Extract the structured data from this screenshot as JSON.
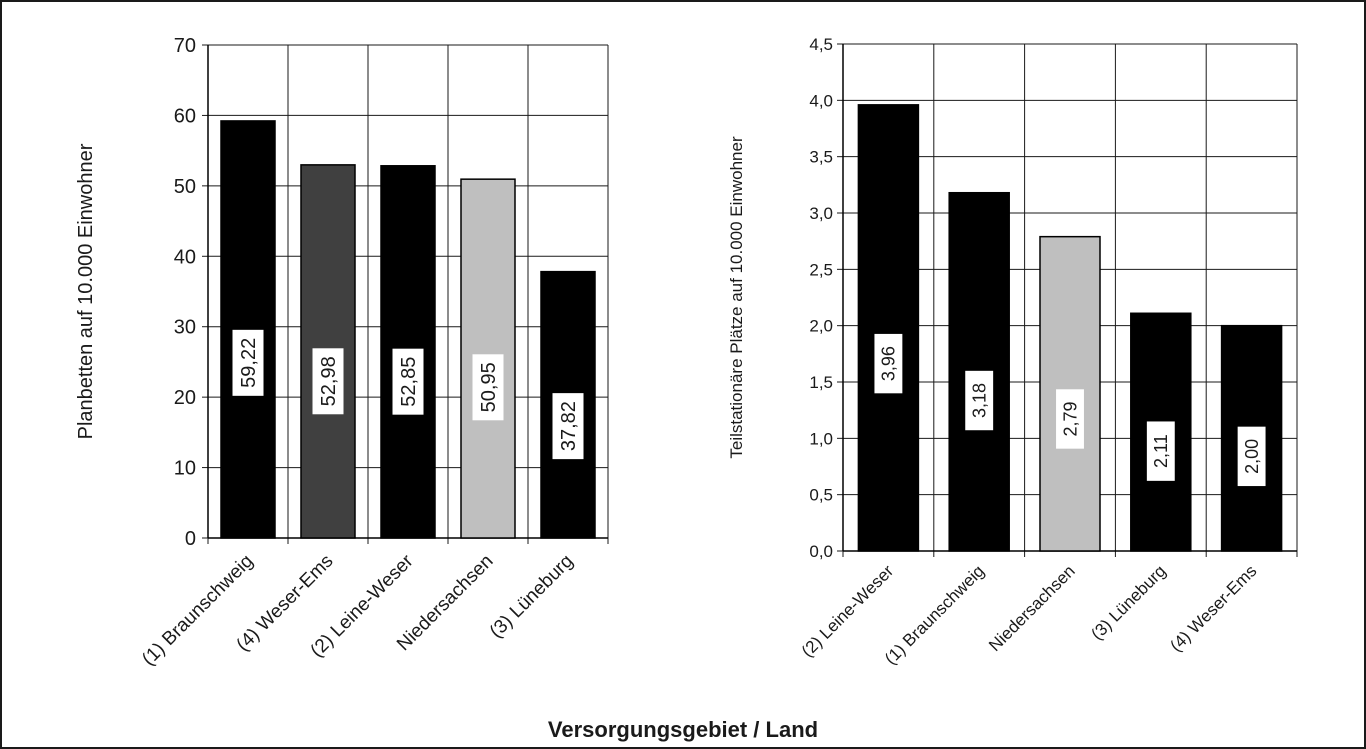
{
  "colors": {
    "black_bar": "#000000",
    "dark_gray_bar": "#404040",
    "light_gray_bar": "#bfbfbf",
    "grid": "#1a1a1a"
  },
  "xlabel_shared": "Versorgungsgebiet / Land",
  "chart_data": [
    {
      "type": "bar",
      "ylabel": "Planbetten auf 10.000 Einwohner",
      "ylim": [
        0,
        70
      ],
      "yticks": [
        "0",
        "10",
        "20",
        "30",
        "40",
        "50",
        "60",
        "70"
      ],
      "grid": true,
      "categories": [
        "(1) Braunschweig",
        "(4) Weser-Ems",
        "(2) Leine-Weser",
        "Niedersachsen",
        "(3) Lüneburg"
      ],
      "values": [
        59.22,
        52.98,
        52.85,
        50.95,
        37.82
      ],
      "value_labels": [
        "59,22",
        "52,98",
        "52,85",
        "50,95",
        "37,82"
      ],
      "bar_colors": [
        "#000000",
        "#404040",
        "#000000",
        "#bfbfbf",
        "#000000"
      ]
    },
    {
      "type": "bar",
      "ylabel": "Teilstationäre Plätze auf 10.000 Einwohner",
      "ylim": [
        0,
        4.5
      ],
      "yticks": [
        "0,0",
        "0,5",
        "1,0",
        "1,5",
        "2,0",
        "2,5",
        "3,0",
        "3,5",
        "4,0",
        "4,5"
      ],
      "grid": true,
      "categories": [
        "(2) Leine-Weser",
        "(1) Braunschweig",
        "Niedersachsen",
        "(3) Lüneburg",
        "(4) Weser-Ems"
      ],
      "values": [
        3.96,
        3.18,
        2.79,
        2.11,
        2.0
      ],
      "value_labels": [
        "3,96",
        "3,18",
        "2,79",
        "2,11",
        "2,00"
      ],
      "bar_colors": [
        "#000000",
        "#000000",
        "#bfbfbf",
        "#000000",
        "#000000"
      ]
    }
  ]
}
